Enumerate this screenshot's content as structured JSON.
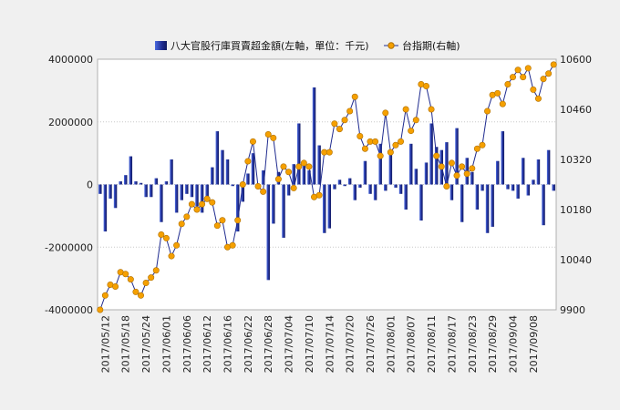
{
  "chart_data": {
    "type": "bar+line",
    "legend_position": "top-center",
    "grid": true,
    "background": {
      "page": "#f0f0f0",
      "plot": "#ffffff"
    },
    "series": [
      {
        "name": "八大官股行庫買賣超金額(左軸，單位：千元)",
        "type": "bar",
        "axis": "left",
        "color": "#1f2b8f",
        "values": [
          -300000,
          -1500000,
          -450000,
          -750000,
          100000,
          300000,
          900000,
          100000,
          50000,
          -400000,
          -400000,
          200000,
          -1200000,
          100000,
          800000,
          -900000,
          -500000,
          -300000,
          -400000,
          -700000,
          -900000,
          -550000,
          550000,
          1700000,
          1100000,
          800000,
          -50000,
          -1500000,
          -550000,
          350000,
          1000000,
          -100000,
          450000,
          -3050000,
          -1250000,
          400000,
          -1700000,
          -350000,
          650000,
          1950000,
          650000,
          450000,
          3100000,
          1250000,
          -1550000,
          -1400000,
          -150000,
          150000,
          -50000,
          200000,
          -500000,
          -100000,
          750000,
          -300000,
          -500000,
          1300000,
          -200000,
          1000000,
          -100000,
          -300000,
          -800000,
          1300000,
          500000,
          -1150000,
          700000,
          1950000,
          1200000,
          1100000,
          1350000,
          -500000,
          1800000,
          -1200000,
          850000,
          400000,
          -800000,
          -200000,
          -1550000,
          -1350000,
          750000,
          1700000,
          -150000,
          -200000,
          -450000,
          850000,
          -350000,
          150000,
          800000,
          -1300000,
          1100000,
          -200000
        ]
      },
      {
        "name": "台指期(右軸)",
        "type": "line",
        "axis": "right",
        "color": "#1f2b8f",
        "marker_color": "#f5a000",
        "values": [
          9900,
          9940,
          9970,
          9965,
          10005,
          10000,
          9985,
          9950,
          9940,
          9975,
          9990,
          10010,
          10110,
          10100,
          10050,
          10080,
          10140,
          10160,
          10195,
          10180,
          10195,
          10210,
          10200,
          10135,
          10150,
          10075,
          10080,
          10150,
          10250,
          10315,
          10370,
          10245,
          10230,
          10390,
          10380,
          10265,
          10300,
          10285,
          10240,
          10300,
          10310,
          10300,
          10215,
          10220,
          10340,
          10340,
          10420,
          10405,
          10430,
          10455,
          10495,
          10385,
          10350,
          10370,
          10370,
          10330,
          10450,
          10340,
          10360,
          10370,
          10460,
          10400,
          10430,
          10530,
          10525,
          10460,
          10330,
          10300,
          10245,
          10310,
          10275,
          10300,
          10280,
          10295,
          10350,
          10360,
          10455,
          10500,
          10505,
          10475,
          10530,
          10550,
          10570,
          10550,
          10575,
          10515,
          10490,
          10545,
          10560,
          10585
        ]
      }
    ],
    "x_tick_labels": [
      "2017/05/12",
      "2017/05/18",
      "2017/05/24",
      "2017/06/01",
      "2017/06/06",
      "2017/06/12",
      "2017/06/16",
      "2017/06/22",
      "2017/06/28",
      "2017/07/04",
      "2017/07/10",
      "2017/07/14",
      "2017/07/20",
      "2017/07/26",
      "2017/08/01",
      "2017/08/07",
      "2017/08/11",
      "2017/08/17",
      "2017/08/23",
      "2017/08/29",
      "2017/09/04",
      "2017/09/08"
    ],
    "left_axis": {
      "ylim": [
        -4000000,
        4000000
      ],
      "ticks": [
        -4000000,
        -2000000,
        0,
        2000000,
        4000000
      ]
    },
    "right_axis": {
      "ylim": [
        9900,
        10600
      ],
      "ticks": [
        9900,
        10040,
        10180,
        10320,
        10460,
        10600
      ]
    }
  }
}
